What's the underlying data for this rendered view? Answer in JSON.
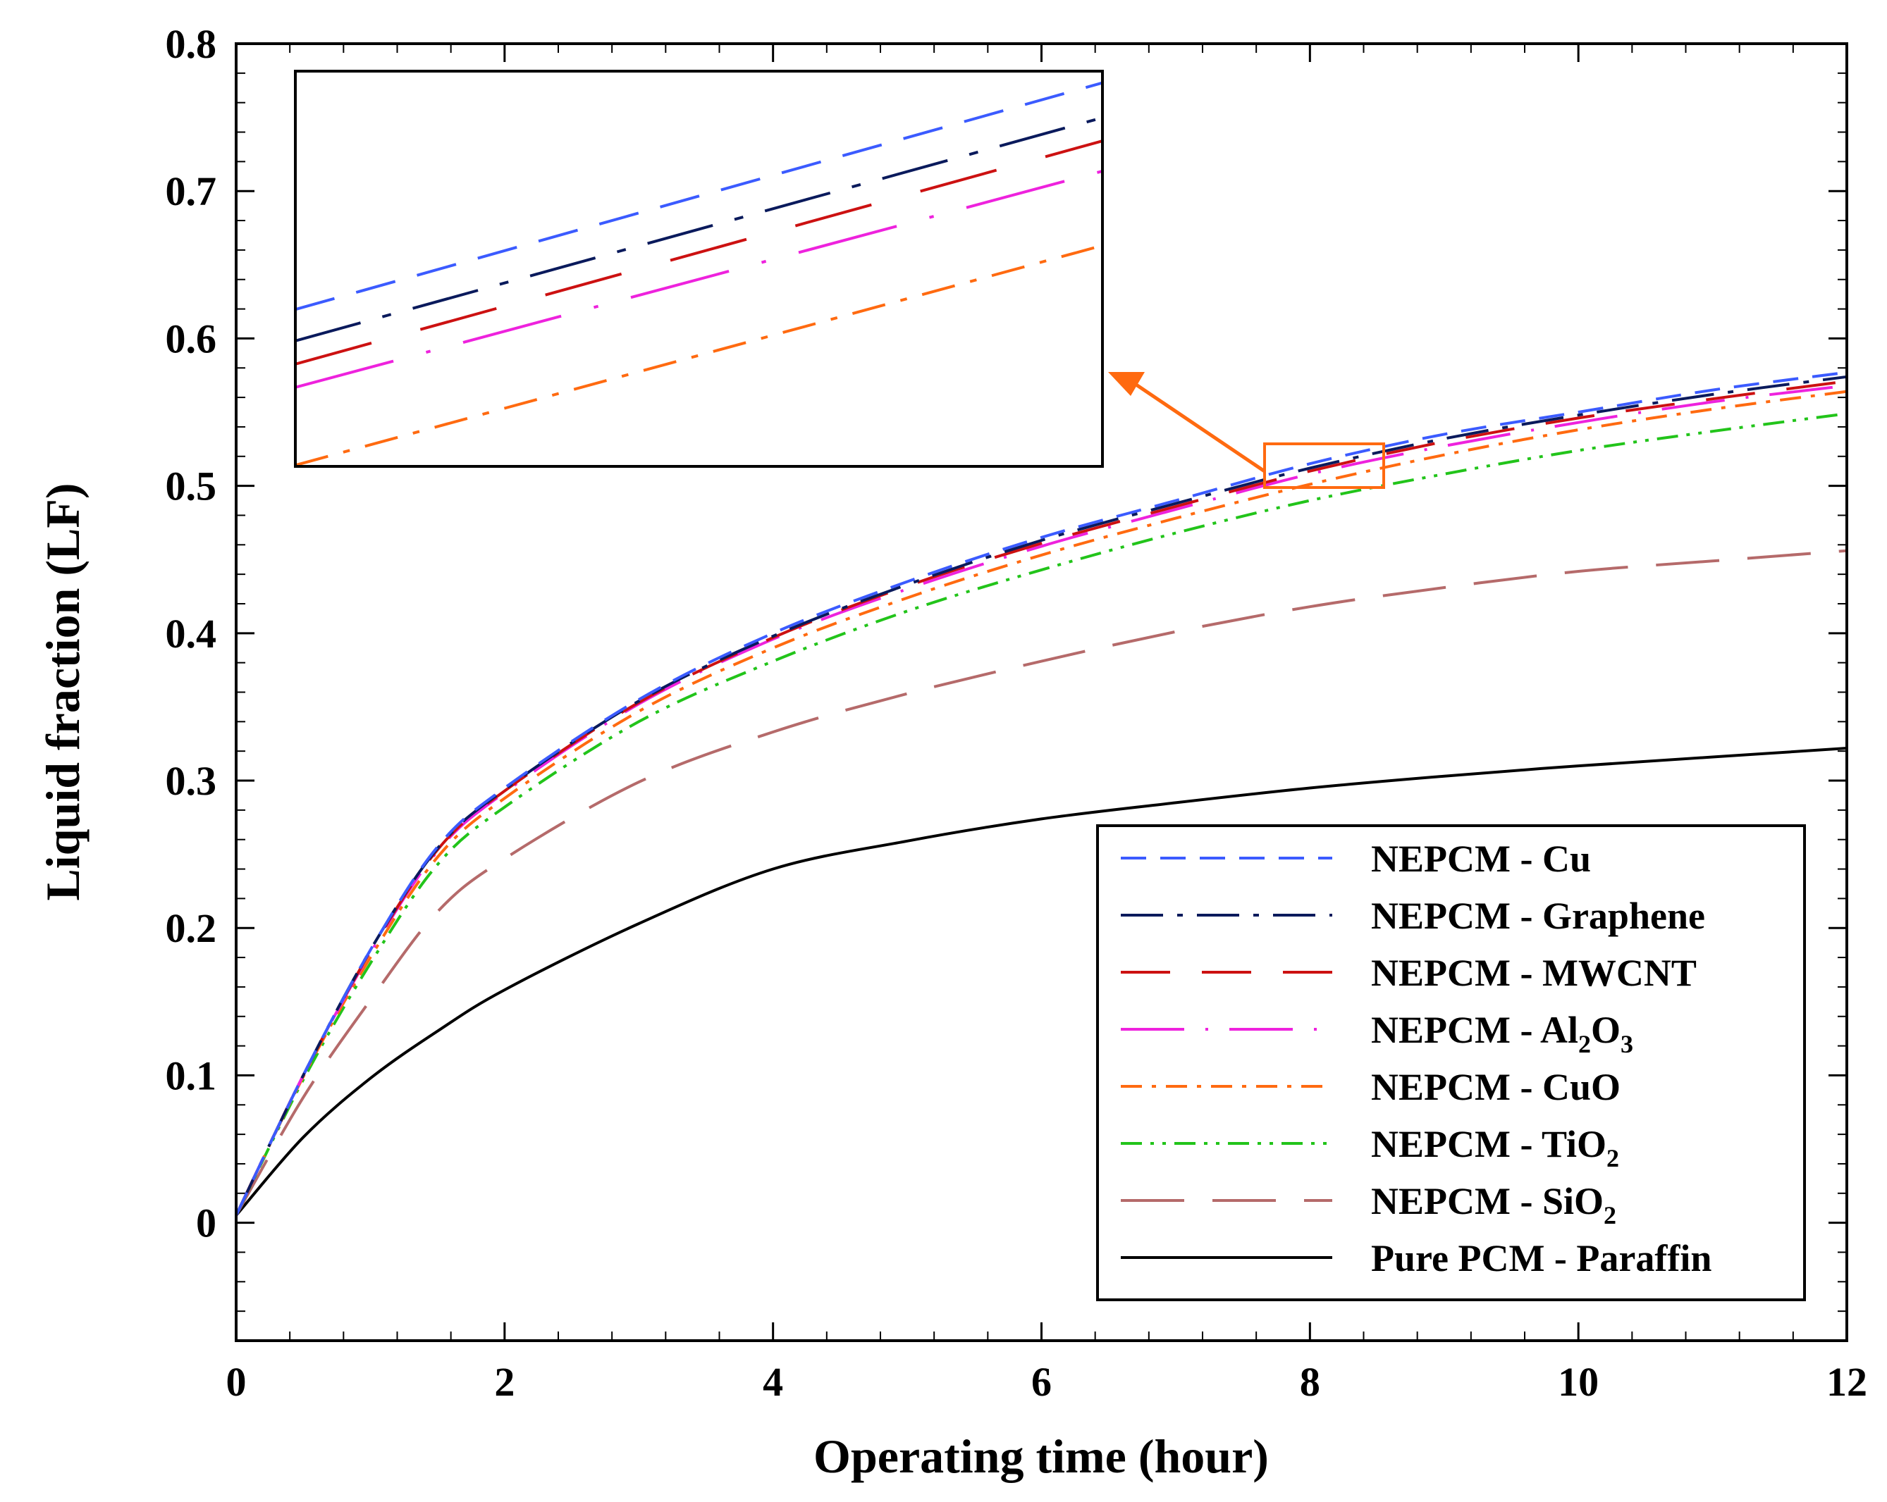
{
  "chart_data": {
    "type": "line",
    "title": "",
    "xlabel": "Operating time (hour)",
    "ylabel": "Liquid fraction (LF)",
    "xlim": [
      0,
      12
    ],
    "ylim": [
      -0.08,
      0.8
    ],
    "xticks": [
      0,
      2,
      4,
      6,
      8,
      10,
      12
    ],
    "xtick_labels": [
      "0",
      "2",
      "4",
      "6",
      "8",
      "10",
      "12"
    ],
    "yticks": [
      0,
      0.1,
      0.2,
      0.3,
      0.4,
      0.5,
      0.6,
      0.7,
      0.8
    ],
    "ytick_labels": [
      "0",
      "0.1",
      "0.2",
      "0.3",
      "0.4",
      "0.5",
      "0.6",
      "0.7",
      "0.8"
    ],
    "grid": false,
    "legend_position": "bottom-right",
    "x": [
      0,
      0.5,
      1,
      1.5,
      2,
      3,
      4,
      5,
      6,
      7,
      8,
      9,
      10,
      11,
      12
    ],
    "series": [
      {
        "name": "NEPCM - Cu",
        "label_main": "NEPCM - Cu",
        "label_sub": "",
        "label_tail": "",
        "color": "#3b5bff",
        "dash": "dash",
        "values": [
          0.005,
          0.1,
          0.185,
          0.255,
          0.295,
          0.355,
          0.4,
          0.435,
          0.465,
          0.49,
          0.515,
          0.535,
          0.55,
          0.565,
          0.577
        ]
      },
      {
        "name": "NEPCM - Graphene",
        "label_main": "NEPCM - Graphene",
        "label_sub": "",
        "label_tail": "",
        "color": "#0a1a5c",
        "dash": "longdashdot",
        "values": [
          0.005,
          0.1,
          0.185,
          0.254,
          0.294,
          0.354,
          0.398,
          0.433,
          0.463,
          0.488,
          0.512,
          0.532,
          0.548,
          0.562,
          0.574
        ]
      },
      {
        "name": "NEPCM - MWCNT",
        "label_main": "NEPCM - MWCNT",
        "label_sub": "",
        "label_tail": "",
        "color": "#cc1111",
        "dash": "longgap",
        "values": [
          0.005,
          0.1,
          0.184,
          0.253,
          0.293,
          0.353,
          0.397,
          0.432,
          0.461,
          0.486,
          0.51,
          0.53,
          0.546,
          0.559,
          0.571
        ]
      },
      {
        "name": "NEPCM - Al2O3",
        "label_main": "NEPCM - Al",
        "label_sub": "2",
        "label_tail": "O",
        "label_sub2": "3",
        "color": "#ee22dd",
        "dash": "longdot",
        "values": [
          0.005,
          0.1,
          0.183,
          0.252,
          0.292,
          0.352,
          0.396,
          0.43,
          0.459,
          0.484,
          0.508,
          0.527,
          0.543,
          0.557,
          0.568
        ]
      },
      {
        "name": "NEPCM - CuO",
        "label_main": "NEPCM - CuO",
        "label_sub": "",
        "label_tail": "",
        "color": "#ff6a10",
        "dash": "dashdot",
        "values": [
          0.005,
          0.099,
          0.18,
          0.248,
          0.288,
          0.347,
          0.39,
          0.424,
          0.453,
          0.478,
          0.501,
          0.521,
          0.538,
          0.552,
          0.564
        ]
      },
      {
        "name": "NEPCM - TiO2",
        "label_main": "NEPCM - TiO",
        "label_sub": "2",
        "label_tail": "",
        "color": "#22c41a",
        "dash": "dashdotdot",
        "values": [
          0.005,
          0.097,
          0.176,
          0.243,
          0.282,
          0.34,
          0.381,
          0.415,
          0.443,
          0.468,
          0.49,
          0.508,
          0.524,
          0.537,
          0.549
        ]
      },
      {
        "name": "NEPCM - SiO2",
        "label_main": "NEPCM - SiO",
        "label_sub": "2",
        "label_tail": "",
        "color": "#b56a6a",
        "dash": "verylong",
        "values": [
          0.005,
          0.085,
          0.151,
          0.211,
          0.247,
          0.299,
          0.333,
          0.359,
          0.381,
          0.401,
          0.418,
          0.431,
          0.442,
          0.449,
          0.456
        ]
      },
      {
        "name": "Pure PCM - Paraffin",
        "label_main": "Pure PCM - Paraffin",
        "label_sub": "",
        "label_tail": "",
        "color": "#000000",
        "dash": "solid",
        "values": [
          0.005,
          0.058,
          0.098,
          0.13,
          0.158,
          0.203,
          0.24,
          0.259,
          0.274,
          0.285,
          0.295,
          0.303,
          0.31,
          0.316,
          0.322
        ]
      }
    ],
    "inset": {
      "zoom_xlim": [
        7.7,
        8.6
      ],
      "zoom_ylim": [
        0.494,
        0.528
      ]
    }
  }
}
